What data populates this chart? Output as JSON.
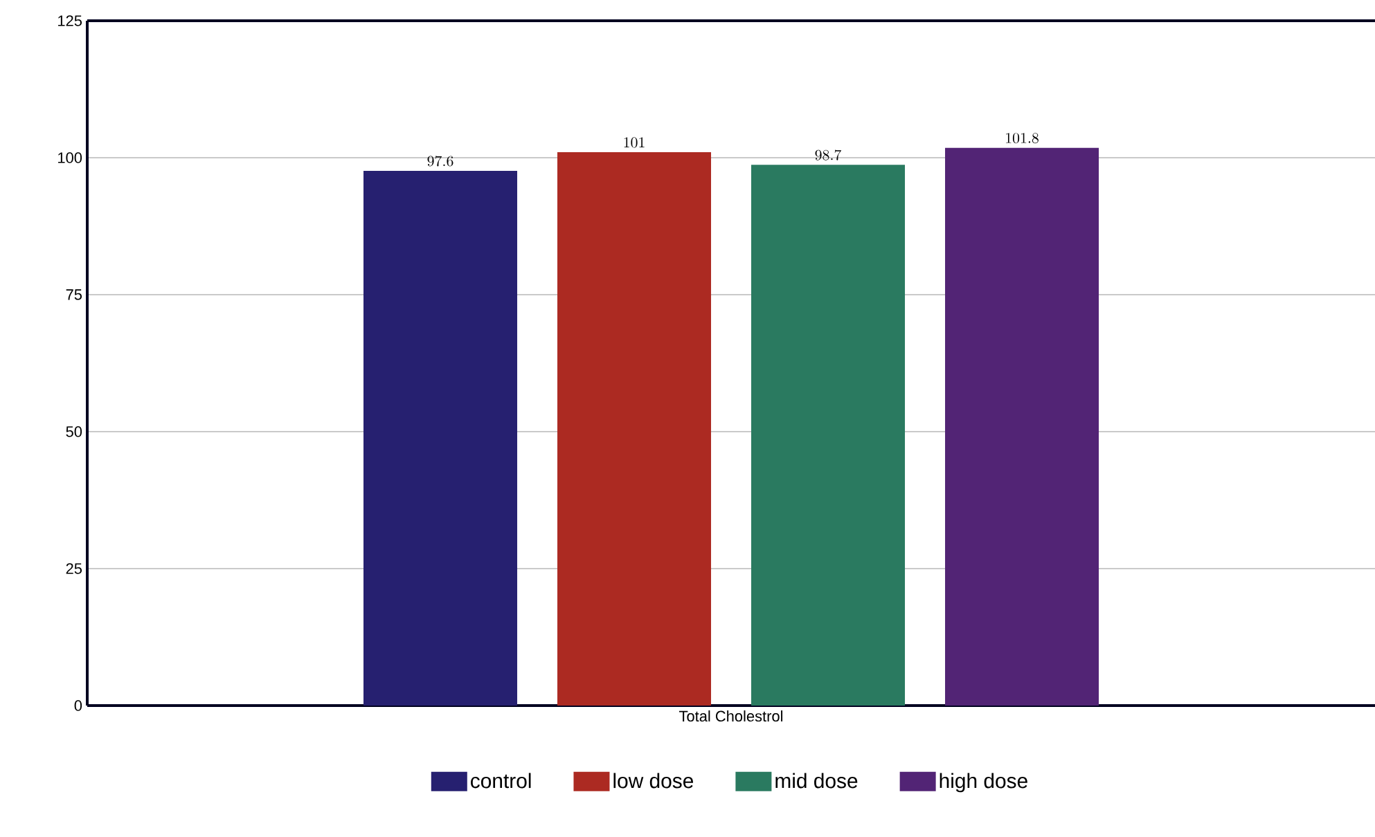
{
  "chart_data": {
    "type": "bar",
    "categories": [
      "Total Cholestrol"
    ],
    "series": [
      {
        "name": "control",
        "color": "#262070",
        "values": [
          97.6
        ]
      },
      {
        "name": "low dose",
        "color": "#ac2a22",
        "values": [
          101
        ]
      },
      {
        "name": "mid dose",
        "color": "#2a7a60",
        "values": [
          98.7
        ]
      },
      {
        "name": "high dose",
        "color": "#522475",
        "values": [
          101.8
        ]
      }
    ],
    "ylim": [
      0,
      125
    ],
    "yticks": [
      0,
      25,
      50,
      75,
      100,
      125
    ],
    "grid": "y",
    "legend": "bottom",
    "data_labels": true
  }
}
